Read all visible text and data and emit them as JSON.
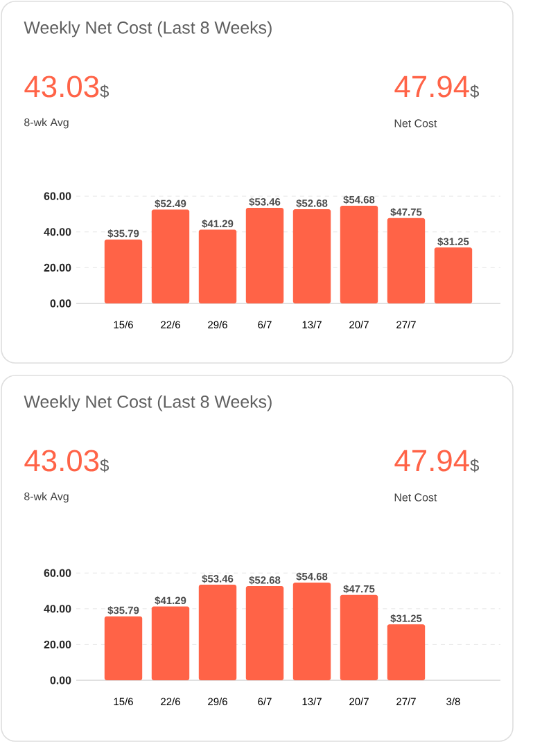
{
  "chart_data": [
    {
      "type": "bar",
      "title": "Weekly Net Cost (Last 8 Weeks)",
      "annotations": [
        "43.03",
        "$",
        "8-wk Avg",
        "47.94",
        "$",
        "Net Cost"
      ],
      "categories": [
        "15/6",
        "22/6",
        "29/6",
        "6/7",
        "13/7",
        "20/7",
        "27/7",
        null
      ],
      "values": [
        35.79,
        52.49,
        41.29,
        53.46,
        52.68,
        54.68,
        47.75,
        31.25
      ],
      "value_labels": [
        "$35.79",
        "$52.49",
        "$41.29",
        "$53.46",
        "$52.68",
        "$54.68",
        "$47.75",
        "$31.25"
      ],
      "color": "#ff6347",
      "ylim": [
        0,
        62
      ],
      "yticks": [
        {
          "value": 0,
          "label": "0.00"
        },
        {
          "value": 20,
          "label": "20.00"
        },
        {
          "value": 40,
          "label": "40.00"
        },
        {
          "value": 60,
          "label": "60.00"
        }
      ],
      "grid": "y"
    },
    {
      "type": "bar",
      "title": "Weekly Net Cost (Last 8 Weeks)",
      "annotations": [
        "43.03",
        "$",
        "8-wk Avg",
        "47.94",
        "$",
        "Net Cost"
      ],
      "categories": [
        "15/6",
        "22/6",
        "29/6",
        "6/7",
        "13/7",
        "20/7",
        "27/7",
        "3/8"
      ],
      "values": [
        35.79,
        41.29,
        53.46,
        52.68,
        54.68,
        47.75,
        31.25,
        null
      ],
      "value_labels": [
        "$35.79",
        "$41.29",
        "$53.46",
        "$52.68",
        "$54.68",
        "$47.75",
        "$31.25",
        null
      ],
      "color": "#ff6347",
      "ylim": [
        0,
        62
      ],
      "yticks": [
        {
          "value": 0,
          "label": "0.00"
        },
        {
          "value": 20,
          "label": "20.00"
        },
        {
          "value": 40,
          "label": "40.00"
        },
        {
          "value": 60,
          "label": "60.00"
        }
      ],
      "grid": "y"
    }
  ]
}
